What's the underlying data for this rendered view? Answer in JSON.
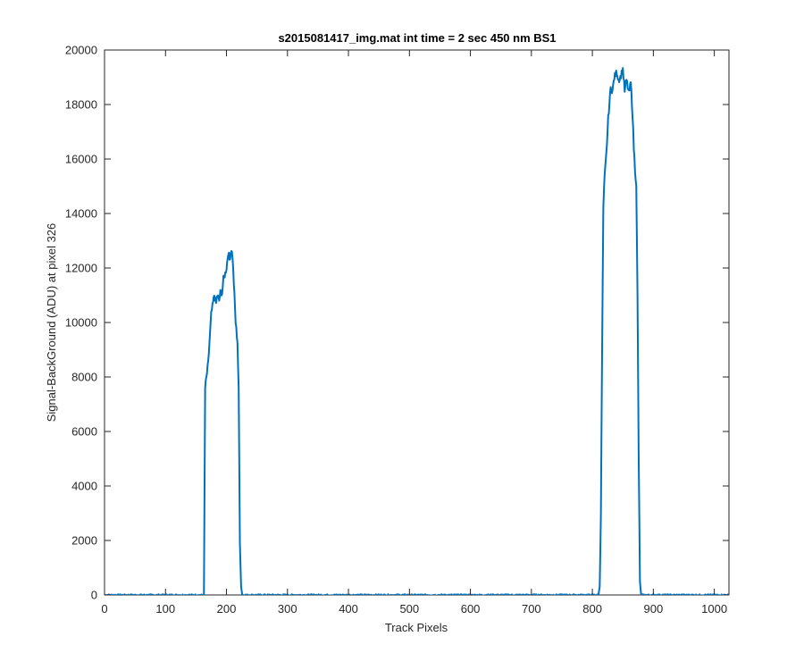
{
  "chart_data": {
    "type": "line",
    "title": "s2015081417_img.mat int time = 2 sec  450 nm BS1",
    "xlabel": "Track Pixels",
    "ylabel": "Signal-BackGround (ADU) at pixel 326",
    "xlim": [
      0,
      1024
    ],
    "ylim": [
      0,
      20000
    ],
    "xticks": [
      0,
      100,
      200,
      300,
      400,
      500,
      600,
      700,
      800,
      900,
      1000
    ],
    "yticks": [
      0,
      2000,
      4000,
      6000,
      8000,
      10000,
      12000,
      14000,
      16000,
      18000,
      20000
    ],
    "grid": false,
    "series": [
      {
        "color": "#0072bd",
        "x": [
          0,
          50,
          100,
          150,
          160,
          163,
          165,
          170,
          175,
          180,
          183,
          185,
          188,
          190,
          193,
          195,
          198,
          200,
          203,
          205,
          208,
          210,
          213,
          215,
          218,
          220,
          222,
          224,
          226,
          228,
          240,
          300,
          400,
          500,
          600,
          700,
          800,
          810,
          812,
          814,
          816,
          818,
          820,
          823,
          826,
          830,
          833,
          836,
          840,
          843,
          846,
          850,
          853,
          856,
          860,
          863,
          866,
          868,
          870,
          872,
          874,
          876,
          878,
          880,
          900,
          950,
          1000,
          1024
        ],
        "y": [
          0,
          0,
          0,
          0,
          0,
          0,
          7600,
          8500,
          10300,
          11000,
          10700,
          11000,
          10800,
          11100,
          11100,
          11600,
          11800,
          12000,
          12600,
          12300,
          12700,
          12400,
          11000,
          10000,
          9300,
          7500,
          2000,
          300,
          0,
          0,
          0,
          0,
          0,
          0,
          0,
          0,
          0,
          0,
          300,
          3000,
          9000,
          14200,
          15300,
          16200,
          17500,
          18600,
          18500,
          19000,
          19200,
          18900,
          19000,
          19300,
          18500,
          18900,
          18400,
          18800,
          17600,
          16400,
          15600,
          15100,
          11000,
          5000,
          500,
          0,
          0,
          0,
          0,
          0
        ]
      }
    ]
  }
}
